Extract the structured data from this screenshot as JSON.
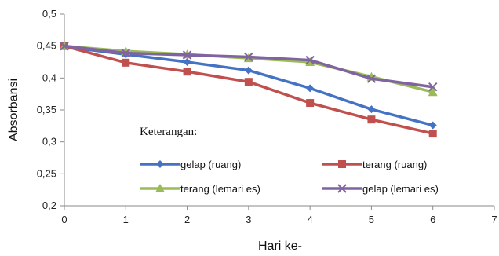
{
  "chart_data": {
    "type": "line",
    "xlabel": "Hari ke-",
    "ylabel": "Absorbansi",
    "xlim": [
      0,
      7
    ],
    "ylim": [
      0.2,
      0.5
    ],
    "x_ticks": [
      "0",
      "1",
      "2",
      "3",
      "4",
      "5",
      "6",
      "7"
    ],
    "y_ticks": [
      "0,2",
      "0,25",
      "0,3",
      "0,35",
      "0,4",
      "0,45",
      "0,5"
    ],
    "x": [
      0,
      1,
      2,
      3,
      4,
      5,
      6
    ],
    "grid": false,
    "legend_title": "Keterangan:",
    "legend_position": "inside-bottom",
    "series": [
      {
        "name": "gelap (ruang)",
        "color": "#4472C4",
        "marker": "diamond",
        "values": [
          0.449,
          0.437,
          0.425,
          0.412,
          0.384,
          0.351,
          0.326
        ]
      },
      {
        "name": "terang (ruang)",
        "color": "#C0504D",
        "marker": "square",
        "values": [
          0.45,
          0.424,
          0.41,
          0.394,
          0.361,
          0.335,
          0.313
        ]
      },
      {
        "name": "terang (lemari es)",
        "color": "#9BBB59",
        "marker": "triangle",
        "values": [
          0.45,
          0.442,
          0.437,
          0.431,
          0.425,
          0.402,
          0.378
        ]
      },
      {
        "name": "gelap (lemari es)",
        "color": "#8064A2",
        "marker": "x",
        "values": [
          0.45,
          0.439,
          0.436,
          0.433,
          0.428,
          0.399,
          0.386
        ]
      }
    ]
  }
}
